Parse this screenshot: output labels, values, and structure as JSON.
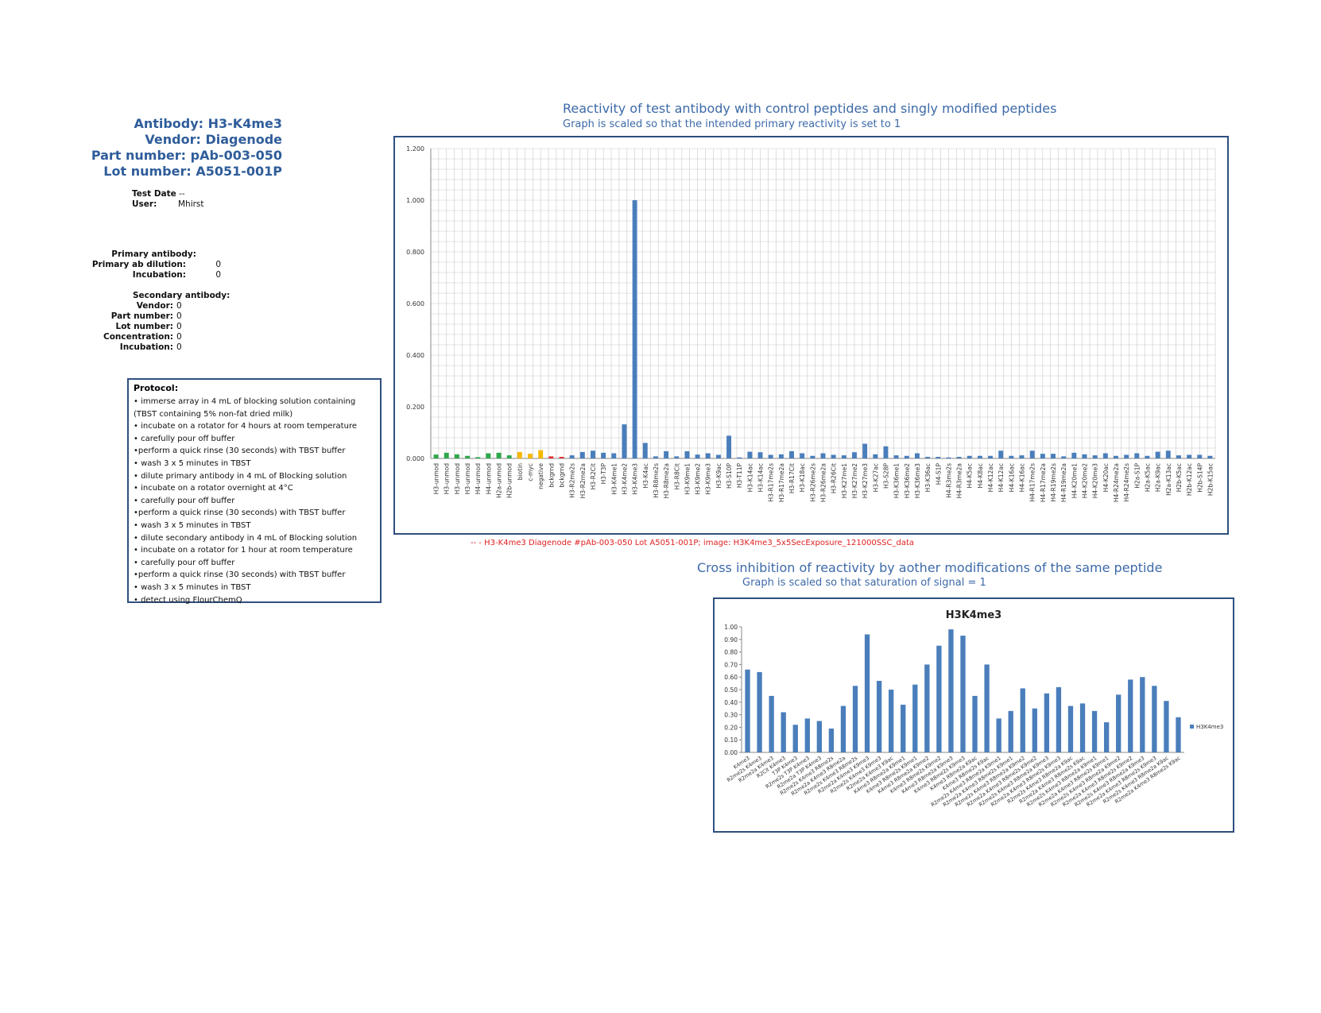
{
  "header": {
    "antibody": "Antibody: H3-K4me3",
    "vendor": "Vendor: Diagenode",
    "part_number": "Part number: pAb-003-050",
    "lot_number": "Lot number: A5051-001P"
  },
  "test_info": {
    "test_date_label": "Test Date",
    "test_date_value": "--",
    "user_label": "User:",
    "user_value": "Mhirst"
  },
  "primary": {
    "heading": "Primary antibody:",
    "dilution_label": "Primary ab dilution:",
    "dilution_value": "0",
    "incubation_label": "Incubation:",
    "incubation_value": "0"
  },
  "secondary": {
    "heading": "Secondary antibody:",
    "vendor_label": "Vendor:",
    "vendor_value": "0",
    "part_label": "Part number:",
    "part_value": "0",
    "lot_label": "Lot number:",
    "lot_value": "0",
    "conc_label": "Concentration:",
    "conc_value": "0",
    "incubation_label": "Incubation:",
    "incubation_value": "0"
  },
  "protocol": {
    "title": "Protocol:",
    "steps": [
      "• immerse array in 4 mL of blocking solution containing",
      "(TBST containing 5% non-fat dried milk)",
      "• incubate on a rotator for 4 hours at room temperature",
      "• carefully pour off buffer",
      "•perform a quick rinse (30 seconds) with TBST buffer",
      "• wash 3 x 5 minutes in TBST",
      "• dilute primary antibody in 4 mL of Blocking solution",
      "• incubate on a rotator overnight at 4°C",
      "•  carefully pour off buffer",
      "•perform a quick rinse (30 seconds) with TBST buffer",
      "• wash 3 x 5 minutes in TBST",
      "•  dilute secondary antibody in 4 mL of Blocking solution",
      "• incubate on a rotator for 1 hour at room temperature",
      "• carefully pour off buffer",
      "•perform a quick rinse (30 seconds) with TBST buffer",
      "• wash 3 x 5 minutes in TBST",
      "• detect using FlourChemQ"
    ]
  },
  "chart1_header": {
    "title": "Reactivity of test antibody with control peptides and singly modified peptides",
    "subtitle": "Graph is scaled so that the intended primary reactivity is set to 1"
  },
  "chart1_caption": "-- - H3-K4me3 Diagenode #pAb-003-050 Lot A5051-001P; image: H3K4me3_5x5SecExposure_121000SSC_data",
  "chart2_header": {
    "title": "Cross inhibition of reactivity by aother modifications of the same peptide",
    "subtitle": "Graph is scaled so that saturation of signal = 1"
  },
  "colors": {
    "bar_blue": "#4a7ebb",
    "green": "#2ea84a",
    "yellow": "#f5b800",
    "red": "#e03030",
    "border": "#2f4f7f",
    "title_blue": "#3d6aa8"
  },
  "chart_data": [
    {
      "type": "bar",
      "title": "",
      "ylim": [
        0,
        1.2
      ],
      "yticks": [
        "0.000",
        "0.200",
        "0.400",
        "0.600",
        "0.800",
        "1.000",
        "1.200"
      ],
      "grid": true,
      "categories": [
        "H3-unmod",
        "H3-unmod",
        "H3-unmod",
        "H3-unmod",
        "H4-unmod",
        "H4-unmod",
        "H2a-unmod",
        "H2b-unmod",
        "biotin",
        "c-myc",
        "negative",
        "bckgrnd",
        "bckgrnd",
        "H3-R2me2s",
        "H3-R2me2a",
        "H3-R2Cit",
        "H3-T3P",
        "H3-K4me1",
        "H3-K4me2",
        "H3-K4me3",
        "H3-K4ac",
        "H3-R8me2s",
        "H3-R8me2a",
        "H3-R8Cit",
        "H3-K9me1",
        "H3-K9me2",
        "H3-K9me3",
        "H3-K9ac",
        "H3-S10P",
        "H3-T11P",
        "H3-K14ac",
        "H3-K14ac",
        "H3-R17me2s",
        "H3-R17me2a",
        "H3-R17Cit",
        "H3-K18ac",
        "H3-R26me2s",
        "H3-R26me2a",
        "H3-R26Cit",
        "H3-K27me1",
        "H3-K27me2",
        "H3-K27me3",
        "H3-K27ac",
        "H3-S28P",
        "H3-K36me1",
        "H3-K36me2",
        "H3-K36me3",
        "H3-K36ac",
        "H4-S1P",
        "H4-R3me2s",
        "H4-R3me2a",
        "H4-K5ac",
        "H4-K8ac",
        "H4-K12ac",
        "H4-K12ac",
        "H4-K16ac",
        "H4-K16ac",
        "H4-R17me2s",
        "H4-R17me2a",
        "H4-R19me2s",
        "H4-R19me2a",
        "H4-K20me1",
        "H4-K20me2",
        "H4-K20me3",
        "H4-K20ac",
        "H4-R24me2a",
        "H4-R24me2s",
        "H2a-S1P",
        "H2a-K5ac",
        "H2a-K9ac",
        "H2a-K13ac",
        "H2b-K5ac",
        "H2b-K12ac",
        "H2b-S14P",
        "H2b-K15ac"
      ],
      "values": [
        0.015,
        0.022,
        0.016,
        0.01,
        0.005,
        0.02,
        0.022,
        0.012,
        0.025,
        0.018,
        0.032,
        0.008,
        0.006,
        0.012,
        0.025,
        0.03,
        0.022,
        0.02,
        0.132,
        1.0,
        0.06,
        0.008,
        0.028,
        0.008,
        0.028,
        0.015,
        0.02,
        0.014,
        0.088,
        0.004,
        0.026,
        0.024,
        0.014,
        0.016,
        0.028,
        0.02,
        0.01,
        0.02,
        0.014,
        0.012,
        0.024,
        0.057,
        0.016,
        0.047,
        0.012,
        0.01,
        0.02,
        0.006,
        0.006,
        0.004,
        0.006,
        0.01,
        0.01,
        0.01,
        0.03,
        0.01,
        0.012,
        0.03,
        0.018,
        0.018,
        0.008,
        0.022,
        0.016,
        0.012,
        0.02,
        0.01,
        0.014,
        0.02,
        0.01,
        0.026,
        0.03,
        0.012,
        0.014,
        0.014,
        0.01
      ],
      "bar_colors": [
        "green",
        "green",
        "green",
        "green",
        "green",
        "green",
        "green",
        "green",
        "yellow",
        "yellow",
        "yellow",
        "red",
        "red",
        "blue",
        "blue",
        "blue",
        "blue",
        "blue",
        "blue",
        "blue",
        "blue",
        "blue",
        "blue",
        "blue",
        "blue",
        "blue",
        "blue",
        "blue",
        "blue",
        "blue",
        "blue",
        "blue",
        "blue",
        "blue",
        "blue",
        "blue",
        "blue",
        "blue",
        "blue",
        "blue",
        "blue",
        "blue",
        "blue",
        "blue",
        "blue",
        "blue",
        "blue",
        "blue",
        "blue",
        "blue",
        "blue",
        "blue",
        "blue",
        "blue",
        "blue",
        "blue",
        "blue",
        "blue",
        "blue",
        "blue",
        "blue",
        "blue",
        "blue",
        "blue",
        "blue",
        "blue",
        "blue",
        "blue",
        "blue",
        "blue",
        "blue",
        "blue",
        "blue",
        "blue",
        "blue"
      ]
    },
    {
      "type": "bar",
      "title": "H3K4me3",
      "ylim": [
        0,
        1.0
      ],
      "yticks": [
        "0.00",
        "0.10",
        "0.20",
        "0.30",
        "0.40",
        "0.50",
        "0.60",
        "0.70",
        "0.80",
        "0.90",
        "1.00"
      ],
      "grid": false,
      "legend": "right",
      "series": [
        {
          "name": "H3K4me3"
        }
      ],
      "categories": [
        "K4me3",
        "R2me2s K4me3",
        "R2me2a K4me3",
        "R2Cit K4me3",
        "T3P K4me3",
        "R2me2s T3P K4me3",
        "R2me2a T3P K4me3",
        "R2me2s K4me3 R8me2s",
        "R2me2a K4me3 R8me2a",
        "R2me2s K4me3 R8me2s",
        "R2me2a K4me3 K9me3",
        "R2me2s K4me3 K9me3",
        "R2me2a K4me3 K9ac",
        "K4me3 R8me2a K9me1",
        "K4me3 R8me2s K9me1",
        "K4me3 R8me2a K9me2",
        "K4me3 R8me2s K9me2",
        "K4me3 R8me2a K9me3",
        "K4me3 R8me2s K9me3",
        "K4me3 R8me2a K9ac",
        "K4me3 R8me2s K9ac",
        "R2me2s K4me3 R8me2a K9me1",
        "R2me2a K4me3 R8me2s K9me1",
        "R2me2s K4me3 R8me2a K9me2",
        "R2me2a K4me3 R8me2s K9me2",
        "R2me2s K4me3 R8me2a K9me3",
        "R2me2a K4me3 R8me2s K9me3",
        "R2me2s K4me3 R8me2a K9ac",
        "R2me2a K4me3 R8me2s K9ac",
        "R2me2s K4me3 R8me2a K9me1",
        "R2me2a K4me3 R8me2s K9me1",
        "R2me2s K4me3 R8me2a K9me2",
        "R2me2a K4me3 R8me2s K9me2",
        "R2me2s K4me3 R8me2a K9me3",
        "R2me2a K4me3 R8me2s K9me3",
        "R2me2s K4me3 R8me2a K9ac",
        "R2me2a K4me3 R8me2s K9ac"
      ],
      "values": [
        0.66,
        0.64,
        0.45,
        0.32,
        0.22,
        0.27,
        0.25,
        0.19,
        0.37,
        0.53,
        0.94,
        0.57,
        0.5,
        0.38,
        0.54,
        0.7,
        0.85,
        0.98,
        0.93,
        0.45,
        0.7,
        0.27,
        0.33,
        0.51,
        0.35,
        0.47,
        0.52,
        0.37,
        0.39,
        0.33,
        0.24,
        0.46,
        0.58,
        0.6,
        0.53,
        0.41,
        0.28
      ]
    }
  ]
}
